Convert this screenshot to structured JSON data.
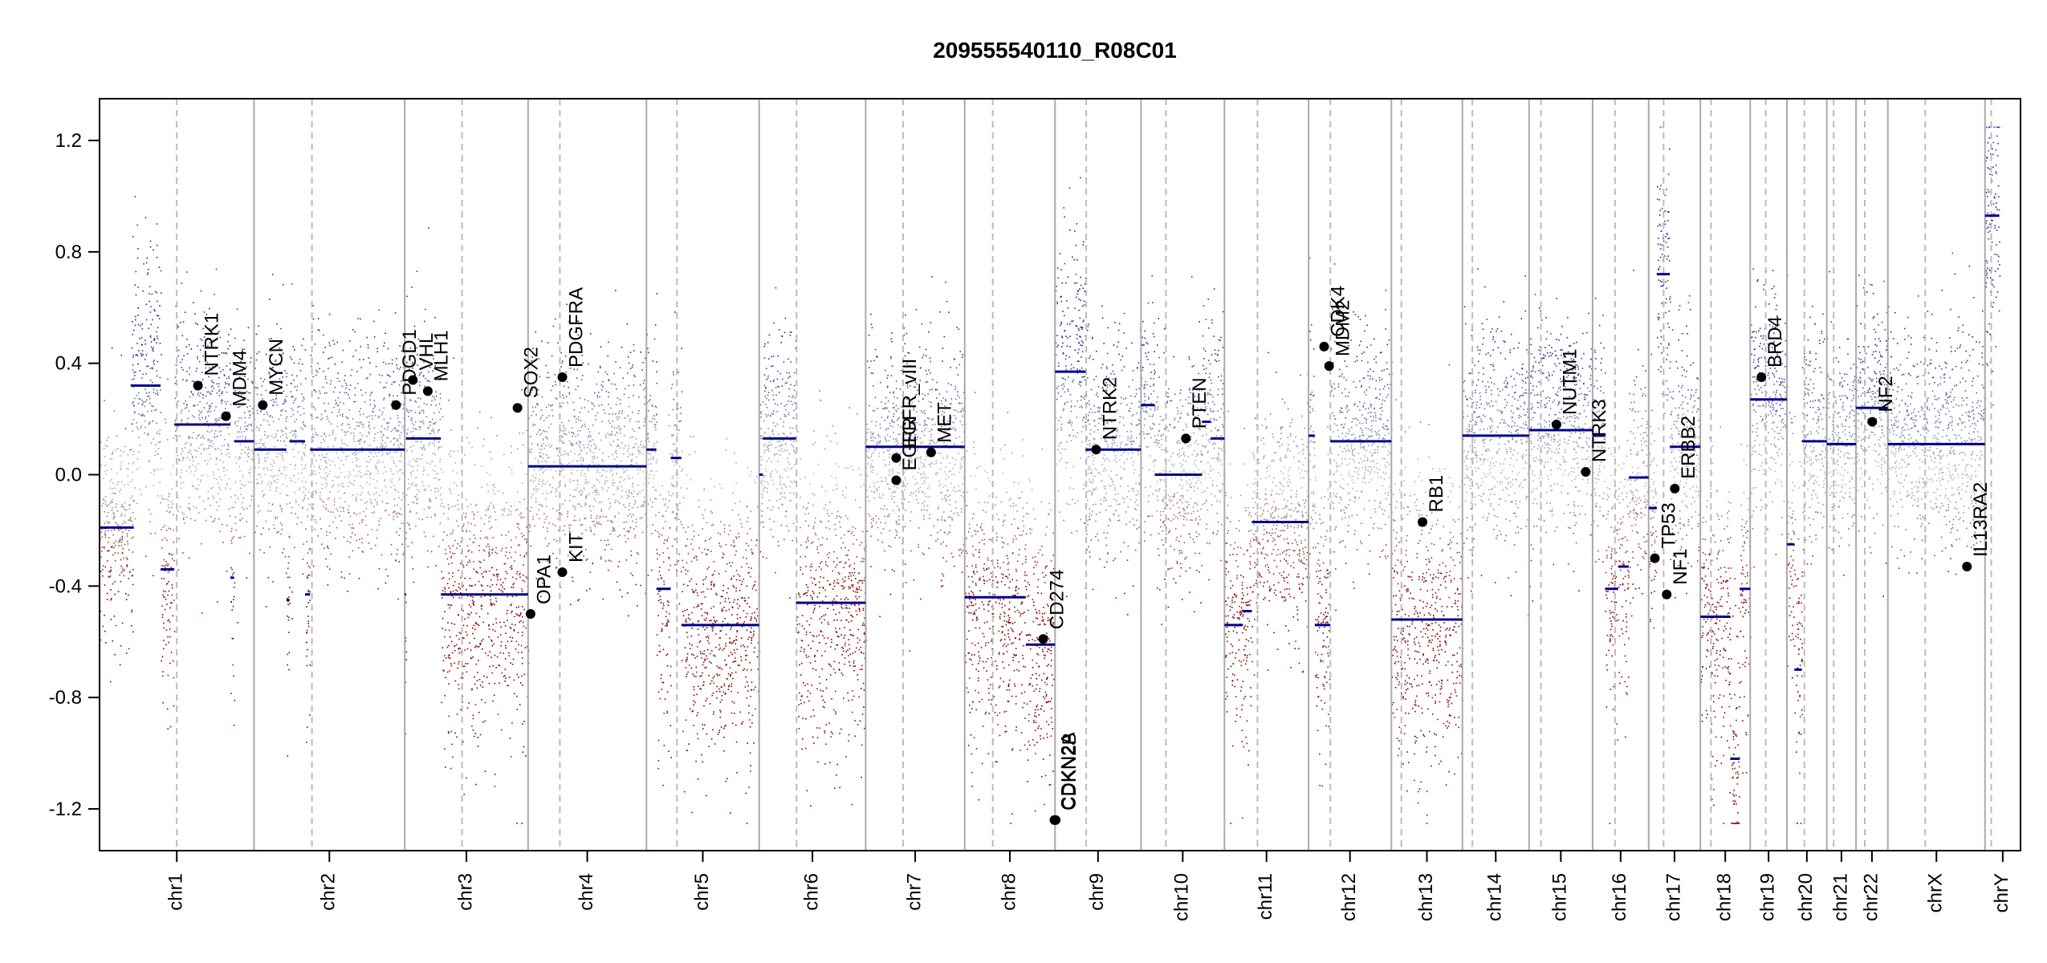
{
  "chart_data": {
    "type": "scatter",
    "title": "209555540110_R08C01",
    "xlabel": "",
    "ylabel": "",
    "ylim": [
      -1.35,
      1.35
    ],
    "y_ticks": [
      -1.2,
      -0.8,
      -0.4,
      0.0,
      0.4,
      0.8,
      1.2
    ],
    "y_tick_labels": [
      "-1.2",
      "-0.8",
      "-0.4",
      "0.0",
      "0.4",
      "0.8",
      "1.2"
    ],
    "grid": false,
    "legend": "none",
    "colors": {
      "gain": "#2a2a9a",
      "loss": "#8b0000",
      "neutral": "#b8b8b8",
      "segment": "#00008b",
      "gene": "#000000"
    },
    "chromosomes": [
      {
        "name": "chr1",
        "label": "chr1",
        "start": 0,
        "end": 248,
        "centromere": 124
      },
      {
        "name": "chr2",
        "label": "chr2",
        "start": 248,
        "end": 490,
        "centromere": 341
      },
      {
        "name": "chr3",
        "label": "chr3",
        "start": 490,
        "end": 688,
        "centromere": 582
      },
      {
        "name": "chr4",
        "label": "chr4",
        "start": 688,
        "end": 878,
        "centromere": 739
      },
      {
        "name": "chr5",
        "label": "chr5",
        "start": 878,
        "end": 1059,
        "centromere": 927
      },
      {
        "name": "chr6",
        "label": "chr6",
        "start": 1059,
        "end": 1230,
        "centromere": 1119
      },
      {
        "name": "chr7",
        "label": "chr7",
        "start": 1230,
        "end": 1389,
        "centromere": 1290
      },
      {
        "name": "chr8",
        "label": "chr8",
        "start": 1389,
        "end": 1534,
        "centromere": 1434
      },
      {
        "name": "chr9",
        "label": "chr9",
        "start": 1534,
        "end": 1672,
        "centromere": 1584
      },
      {
        "name": "chr10",
        "label": "chr10",
        "start": 1672,
        "end": 1806,
        "centromere": 1712
      },
      {
        "name": "chr11",
        "label": "chr11",
        "start": 1806,
        "end": 1941,
        "centromere": 1859
      },
      {
        "name": "chr12",
        "label": "chr12",
        "start": 1941,
        "end": 2074,
        "centromere": 1976
      },
      {
        "name": "chr13",
        "label": "chr13",
        "start": 2074,
        "end": 2188,
        "centromere": 2090
      },
      {
        "name": "chr14",
        "label": "chr14",
        "start": 2188,
        "end": 2295,
        "centromere": 2204
      },
      {
        "name": "chr15",
        "label": "chr15",
        "start": 2295,
        "end": 2397,
        "centromere": 2314
      },
      {
        "name": "chr16",
        "label": "chr16",
        "start": 2397,
        "end": 2487,
        "centromere": 2433
      },
      {
        "name": "chr17",
        "label": "chr17",
        "start": 2487,
        "end": 2570,
        "centromere": 2511
      },
      {
        "name": "chr18",
        "label": "chr18",
        "start": 2570,
        "end": 2650,
        "centromere": 2587
      },
      {
        "name": "chr19",
        "label": "chr19",
        "start": 2650,
        "end": 2709,
        "centromere": 2675
      },
      {
        "name": "chr20",
        "label": "chr20",
        "start": 2709,
        "end": 2773,
        "centromere": 2737
      },
      {
        "name": "chr21",
        "label": "chr21",
        "start": 2773,
        "end": 2820,
        "centromere": 2784
      },
      {
        "name": "chr22",
        "label": "chr22",
        "start": 2820,
        "end": 2871,
        "centromere": 2834
      },
      {
        "name": "chrX",
        "label": "chrX",
        "start": 2871,
        "end": 3027,
        "centromere": 2931
      },
      {
        "name": "chrY",
        "label": "chrY",
        "start": 3027,
        "end": 3084,
        "centromere": 3037
      }
    ],
    "segments": [
      {
        "start": 0,
        "end": 55,
        "value": -0.19
      },
      {
        "start": 50,
        "end": 62,
        "value": 0.32
      },
      {
        "start": 62,
        "end": 98,
        "value": 0.32
      },
      {
        "start": 98,
        "end": 120,
        "value": -0.34
      },
      {
        "start": 120,
        "end": 210,
        "value": 0.18
      },
      {
        "start": 210,
        "end": 216,
        "value": -0.37
      },
      {
        "start": 216,
        "end": 248,
        "value": 0.12
      },
      {
        "start": 248,
        "end": 300,
        "value": 0.09
      },
      {
        "start": 300,
        "end": 305,
        "value": -0.45
      },
      {
        "start": 305,
        "end": 330,
        "value": 0.12
      },
      {
        "start": 330,
        "end": 338,
        "value": -0.43
      },
      {
        "start": 338,
        "end": 490,
        "value": 0.09
      },
      {
        "start": 490,
        "end": 492,
        "value": -0.43
      },
      {
        "start": 492,
        "end": 548,
        "value": 0.13
      },
      {
        "start": 548,
        "end": 688,
        "value": -0.43
      },
      {
        "start": 688,
        "end": 878,
        "value": 0.03
      },
      {
        "start": 878,
        "end": 894,
        "value": 0.09
      },
      {
        "start": 894,
        "end": 917,
        "value": -0.41
      },
      {
        "start": 917,
        "end": 934,
        "value": 0.06
      },
      {
        "start": 934,
        "end": 1059,
        "value": -0.54
      },
      {
        "start": 1059,
        "end": 1065,
        "value": 0.0
      },
      {
        "start": 1065,
        "end": 1118,
        "value": 0.13
      },
      {
        "start": 1118,
        "end": 1230,
        "value": -0.46
      },
      {
        "start": 1230,
        "end": 1389,
        "value": 0.1
      },
      {
        "start": 1389,
        "end": 1487,
        "value": -0.44
      },
      {
        "start": 1487,
        "end": 1520,
        "value": -0.61
      },
      {
        "start": 1520,
        "end": 1534,
        "value": -0.61
      },
      {
        "start": 1534,
        "end": 1583,
        "value": 0.37
      },
      {
        "start": 1583,
        "end": 1672,
        "value": 0.09
      },
      {
        "start": 1672,
        "end": 1694,
        "value": 0.25
      },
      {
        "start": 1694,
        "end": 1770,
        "value": 0.0
      },
      {
        "start": 1770,
        "end": 1784,
        "value": 0.19
      },
      {
        "start": 1784,
        "end": 1806,
        "value": 0.13
      },
      {
        "start": 1806,
        "end": 1835,
        "value": -0.54
      },
      {
        "start": 1835,
        "end": 1850,
        "value": -0.49
      },
      {
        "start": 1850,
        "end": 1941,
        "value": -0.17
      },
      {
        "start": 1941,
        "end": 1951,
        "value": 0.14
      },
      {
        "start": 1951,
        "end": 1976,
        "value": -0.54
      },
      {
        "start": 1976,
        "end": 2074,
        "value": 0.12
      },
      {
        "start": 2074,
        "end": 2188,
        "value": -0.52
      },
      {
        "start": 2188,
        "end": 2295,
        "value": 0.14
      },
      {
        "start": 2295,
        "end": 2397,
        "value": 0.16
      },
      {
        "start": 2397,
        "end": 2417,
        "value": 0.14
      },
      {
        "start": 2417,
        "end": 2438,
        "value": -0.41
      },
      {
        "start": 2438,
        "end": 2455,
        "value": -0.33
      },
      {
        "start": 2455,
        "end": 2487,
        "value": -0.01
      },
      {
        "start": 2487,
        "end": 2500,
        "value": -0.12
      },
      {
        "start": 2500,
        "end": 2521,
        "value": 0.72
      },
      {
        "start": 2521,
        "end": 2570,
        "value": 0.1
      },
      {
        "start": 2570,
        "end": 2618,
        "value": -0.51
      },
      {
        "start": 2618,
        "end": 2633,
        "value": -1.02
      },
      {
        "start": 2633,
        "end": 2650,
        "value": -0.41
      },
      {
        "start": 2650,
        "end": 2709,
        "value": 0.27
      },
      {
        "start": 2709,
        "end": 2721,
        "value": -0.25
      },
      {
        "start": 2721,
        "end": 2733,
        "value": -0.7
      },
      {
        "start": 2733,
        "end": 2773,
        "value": 0.12
      },
      {
        "start": 2773,
        "end": 2820,
        "value": 0.11
      },
      {
        "start": 2820,
        "end": 2871,
        "value": 0.24
      },
      {
        "start": 2871,
        "end": 3027,
        "value": 0.11
      },
      {
        "start": 3027,
        "end": 3050,
        "value": 0.93
      }
    ],
    "genes": [
      {
        "name": "NTRK1",
        "x": 158,
        "y": 0.32
      },
      {
        "name": "MDM4",
        "x": 203,
        "y": 0.21
      },
      {
        "name": "MYCN",
        "x": 262,
        "y": 0.25
      },
      {
        "name": "PDGD1",
        "x": 476,
        "y": 0.25
      },
      {
        "name": "VHL",
        "x": 503,
        "y": 0.34
      },
      {
        "name": "MLH1",
        "x": 527,
        "y": 0.3
      },
      {
        "name": "SOX2",
        "x": 671,
        "y": 0.24
      },
      {
        "name": "OPA1",
        "x": 692,
        "y": -0.5
      },
      {
        "name": "PDGFRA",
        "x": 743,
        "y": 0.35
      },
      {
        "name": "KIT",
        "x": 743,
        "y": -0.35
      },
      {
        "name": "EGFR_vIII",
        "x": 1279,
        "y": 0.06
      },
      {
        "name": "EGFR",
        "x": 1279,
        "y": -0.02
      },
      {
        "name": "MET",
        "x": 1335,
        "y": 0.08
      },
      {
        "name": "CD274",
        "x": 1515,
        "y": -0.59
      },
      {
        "name": "CDKN2A",
        "x": 1533,
        "y": -1.24
      },
      {
        "name": "CDKN2B",
        "x": 1535,
        "y": -1.24
      },
      {
        "name": "NTRK2",
        "x": 1600,
        "y": 0.09
      },
      {
        "name": "PTEN",
        "x": 1744,
        "y": 0.13
      },
      {
        "name": "CDK4",
        "x": 1966,
        "y": 0.46
      },
      {
        "name": "MDM2",
        "x": 1974,
        "y": 0.39
      },
      {
        "name": "RB1",
        "x": 2124,
        "y": -0.17
      },
      {
        "name": "NUTM1",
        "x": 2339,
        "y": 0.18
      },
      {
        "name": "NTRK3",
        "x": 2386,
        "y": 0.01
      },
      {
        "name": "TP53",
        "x": 2497,
        "y": -0.3
      },
      {
        "name": "NF1",
        "x": 2516,
        "y": -0.43
      },
      {
        "name": "ERBB2",
        "x": 2529,
        "y": -0.05
      },
      {
        "name": "BRD4",
        "x": 2668,
        "y": 0.35
      },
      {
        "name": "NF2",
        "x": 2846,
        "y": 0.19
      },
      {
        "name": "IL13RA2",
        "x": 2998,
        "y": -0.33
      }
    ]
  }
}
